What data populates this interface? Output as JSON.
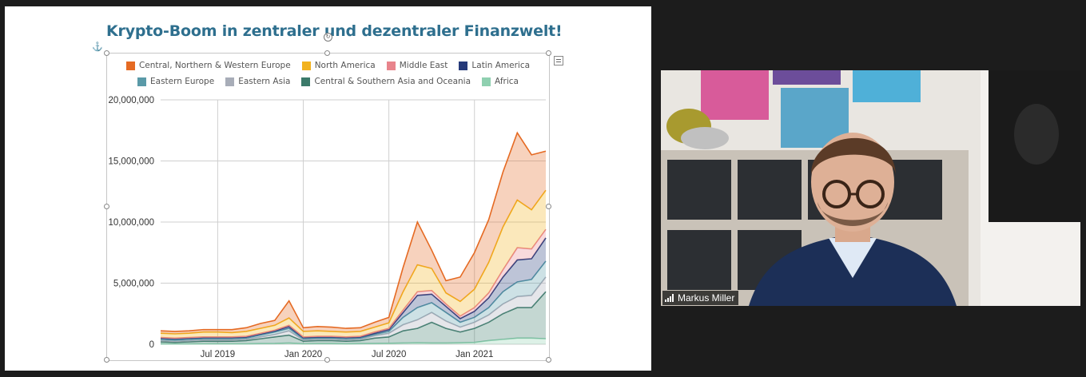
{
  "slide": {
    "title": "Krypto-Boom in zentraler und dezentraler Finanzwelt!"
  },
  "participant": {
    "name": "Markus Miller"
  },
  "chart_data": {
    "type": "area",
    "stacked": true,
    "grid": true,
    "legend_position": "top",
    "x": [
      "2019-03",
      "2019-04",
      "2019-05",
      "2019-06",
      "2019-07",
      "2019-08",
      "2019-09",
      "2019-10",
      "2019-11",
      "2019-12",
      "2020-01",
      "2020-02",
      "2020-03",
      "2020-04",
      "2020-05",
      "2020-06",
      "2020-07",
      "2020-08",
      "2020-09",
      "2020-10",
      "2020-11",
      "2020-12",
      "2021-01",
      "2021-02",
      "2021-03",
      "2021-04",
      "2021-05",
      "2021-06"
    ],
    "x_ticks": [
      {
        "label": "Jul 2019",
        "at": "2019-07"
      },
      {
        "label": "Jan 2020",
        "at": "2020-01"
      },
      {
        "label": "Jul 2020",
        "at": "2020-07"
      },
      {
        "label": "Jan 2021",
        "at": "2021-01"
      }
    ],
    "y_ticks": [
      "0",
      "5,000,000",
      "10,000,000",
      "15,000,000",
      "20,000,000"
    ],
    "ylim": [
      0,
      20000000
    ],
    "series": [
      {
        "name": "Africa",
        "color": "#8fd0b0",
        "values": [
          30000,
          30000,
          30000,
          40000,
          40000,
          40000,
          40000,
          50000,
          60000,
          100000,
          40000,
          50000,
          50000,
          40000,
          50000,
          60000,
          80000,
          100000,
          120000,
          100000,
          100000,
          120000,
          150000,
          300000,
          400000,
          500000,
          500000,
          450000
        ]
      },
      {
        "name": "Central & Southern Asia and Oceania",
        "color": "#3b7a6a",
        "values": [
          170000,
          120000,
          170000,
          210000,
          200000,
          210000,
          260000,
          400000,
          540000,
          650000,
          210000,
          250000,
          250000,
          210000,
          250000,
          440000,
          520000,
          1000000,
          1180000,
          1700000,
          1200000,
          880000,
          1150000,
          1500000,
          2100000,
          2500000,
          2500000,
          3850000
        ]
      },
      {
        "name": "Eastern Asia",
        "color": "#a8adb8",
        "values": [
          100000,
          100000,
          100000,
          100000,
          110000,
          100000,
          100000,
          150000,
          200000,
          350000,
          100000,
          100000,
          100000,
          100000,
          100000,
          200000,
          300000,
          500000,
          700000,
          800000,
          600000,
          400000,
          500000,
          600000,
          800000,
          900000,
          1000000,
          1200000
        ]
      },
      {
        "name": "Eastern Europe",
        "color": "#5a9aa8",
        "values": [
          100000,
          100000,
          100000,
          100000,
          100000,
          100000,
          100000,
          150000,
          200000,
          200000,
          100000,
          100000,
          100000,
          100000,
          100000,
          100000,
          150000,
          600000,
          1000000,
          800000,
          700000,
          400000,
          400000,
          600000,
          1000000,
          1200000,
          1300000,
          1300000
        ]
      },
      {
        "name": "Latin America",
        "color": "#263a7a",
        "values": [
          100000,
          100000,
          100000,
          100000,
          100000,
          100000,
          100000,
          100000,
          100000,
          150000,
          100000,
          100000,
          100000,
          100000,
          100000,
          100000,
          150000,
          400000,
          1000000,
          700000,
          500000,
          300000,
          500000,
          800000,
          1200000,
          1800000,
          1700000,
          1900000
        ]
      },
      {
        "name": "Middle East",
        "color": "#e8848c",
        "values": [
          50000,
          50000,
          50000,
          50000,
          50000,
          50000,
          50000,
          50000,
          50000,
          100000,
          50000,
          50000,
          50000,
          50000,
          50000,
          100000,
          100000,
          200000,
          300000,
          300000,
          200000,
          200000,
          300000,
          400000,
          600000,
          1000000,
          800000,
          700000
        ]
      },
      {
        "name": "North America",
        "color": "#f2b21e",
        "values": [
          350000,
          350000,
          350000,
          400000,
          400000,
          350000,
          400000,
          400000,
          400000,
          600000,
          450000,
          450000,
          400000,
          400000,
          400000,
          400000,
          450000,
          1500000,
          2200000,
          1800000,
          900000,
          1200000,
          1500000,
          2500000,
          3500000,
          3900000,
          3200000,
          3200000
        ]
      },
      {
        "name": "Central, Northern & Western Europe",
        "color": "#e56a23",
        "values": [
          200000,
          200000,
          200000,
          200000,
          200000,
          250000,
          300000,
          400000,
          400000,
          1400000,
          300000,
          350000,
          350000,
          300000,
          300000,
          400000,
          450000,
          2000000,
          3500000,
          1500000,
          1000000,
          2000000,
          3000000,
          3500000,
          4500000,
          5500000,
          4500000,
          3200000
        ]
      }
    ]
  }
}
